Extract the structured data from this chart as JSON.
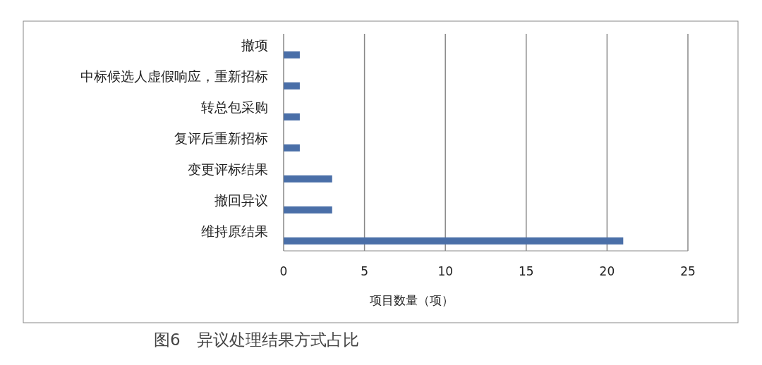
{
  "chart_data": {
    "type": "bar",
    "orientation": "horizontal",
    "categories": [
      "撤项",
      "中标候选人虚假响应，重新招标",
      "转总包采购",
      "复评后重新招标",
      "变更评标结果",
      "撤回异议",
      "维持原结果"
    ],
    "values": [
      1,
      1,
      1,
      1,
      3,
      3,
      21
    ],
    "color": "#4a6fa8",
    "xlim": [
      0,
      25
    ],
    "xticks": [
      0,
      5,
      10,
      15,
      20,
      25
    ],
    "xlabel": "项目数量（项）",
    "grid": "x",
    "annotations": [
      "图6　异议处理结果方式占比"
    ]
  }
}
